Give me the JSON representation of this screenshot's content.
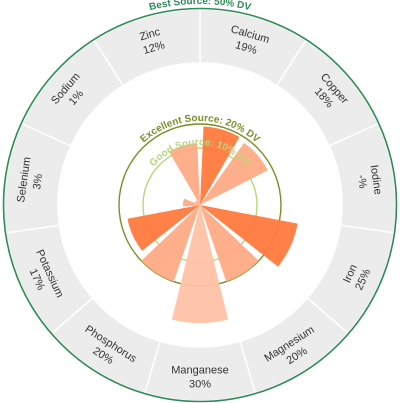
{
  "chart_data": {
    "type": "radial-bar",
    "thresholds": [
      {
        "label": "Best Source: 50% DV",
        "value": 50,
        "color": "#2e8b57"
      },
      {
        "label": "Excellent Source: 20% DV",
        "value": 20,
        "color": "#7a8f2a"
      },
      {
        "label": "Good Source: 10% DV",
        "value": 10,
        "color": "#b6d77a"
      }
    ],
    "items": [
      {
        "name": "Calcium",
        "value_label": "19%",
        "value": 19,
        "color": "#ff7a3d"
      },
      {
        "name": "Copper",
        "value_label": "18%",
        "value": 18,
        "color": "#ffab85"
      },
      {
        "name": "Iodine",
        "value_label": "-%",
        "value": 0,
        "color": "#ffab85"
      },
      {
        "name": "Iron",
        "value_label": "25%",
        "value": 25,
        "color": "#ff7a3d"
      },
      {
        "name": "Magnesium",
        "value_label": "20%",
        "value": 20,
        "color": "#ffab85"
      },
      {
        "name": "Manganese",
        "value_label": "30%",
        "value": 30,
        "color": "#ffc2a6"
      },
      {
        "name": "Phosphorus",
        "value_label": "20%",
        "value": 20,
        "color": "#ffab85"
      },
      {
        "name": "Potassium",
        "value_label": "17%",
        "value": 17,
        "color": "#ff7a3d"
      },
      {
        "name": "Selenium",
        "value_label": "3%",
        "value": 3,
        "color": "#ffab85"
      },
      {
        "name": "Sodium",
        "value_label": "1%",
        "value": 1,
        "color": "#ffab85"
      },
      {
        "name": "Zinc",
        "value_label": "12%",
        "value": 12,
        "color": "#ffab85"
      }
    ],
    "colors": {
      "outer_band": "#ececec",
      "separator": "#ffffff",
      "inner_background": "#ffffff"
    }
  }
}
